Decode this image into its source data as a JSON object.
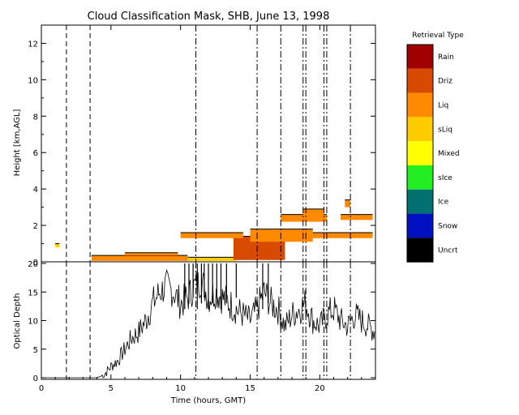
{
  "chart_data": [
    {
      "type": "heatmap",
      "title": "Cloud Classification Mask, SHB, June 13, 1998",
      "xlim": [
        0,
        24
      ],
      "ylim": [
        0,
        13
      ],
      "ylabel": "Height [km,AGL]",
      "y_ticks": [
        "0",
        "2",
        "4",
        "6",
        "8",
        "10",
        "12"
      ],
      "legend_title": "Retrieval Type",
      "legend": [
        {
          "label": "Rain",
          "color": "#a00000"
        },
        {
          "label": "Driz",
          "color": "#d84a00"
        },
        {
          "label": "Liq",
          "color": "#ff8a00"
        },
        {
          "label": "sLiq",
          "color": "#ffcc00"
        },
        {
          "label": "Mixed",
          "color": "#ffff00"
        },
        {
          "label": "sIce",
          "color": "#22ee22"
        },
        {
          "label": "Ice",
          "color": "#007070"
        },
        {
          "label": "Snow",
          "color": "#0010c0"
        },
        {
          "label": "Uncrt",
          "color": "#000000"
        }
      ],
      "dashed_lines_x": [
        1.8,
        3.5
      ],
      "dashdot_lines_x": [
        11.1,
        15.5,
        17.2,
        18.8,
        19.0,
        20.3,
        20.5,
        22.2
      ],
      "cloud_layers": [
        {
          "x0": 3.6,
          "x1": 10.5,
          "y0": 0.05,
          "y1": 0.35,
          "class": "Liq"
        },
        {
          "x0": 6.0,
          "x1": 9.8,
          "y0": 0.35,
          "y1": 0.5,
          "class": "Liq"
        },
        {
          "x0": 10.5,
          "x1": 14.0,
          "y0": 0.05,
          "y1": 0.25,
          "class": "sLiq"
        },
        {
          "x0": 13.8,
          "x1": 17.5,
          "y0": 0.1,
          "y1": 1.4,
          "class": "Driz"
        },
        {
          "x0": 15.0,
          "x1": 19.5,
          "y0": 1.1,
          "y1": 1.8,
          "class": "Liq"
        },
        {
          "x0": 10.0,
          "x1": 14.5,
          "y0": 1.3,
          "y1": 1.6,
          "class": "Liq"
        },
        {
          "x0": 17.2,
          "x1": 20.5,
          "y0": 2.2,
          "y1": 2.6,
          "class": "Liq"
        },
        {
          "x0": 18.8,
          "x1": 20.3,
          "y0": 2.4,
          "y1": 2.9,
          "class": "Liq"
        },
        {
          "x0": 19.5,
          "x1": 23.8,
          "y0": 1.3,
          "y1": 1.6,
          "class": "Liq"
        },
        {
          "x0": 21.5,
          "x1": 23.8,
          "y0": 2.3,
          "y1": 2.6,
          "class": "Liq"
        },
        {
          "x0": 21.8,
          "x1": 22.2,
          "y0": 3.0,
          "y1": 3.4,
          "class": "Liq"
        },
        {
          "x0": 1.0,
          "x1": 1.3,
          "y0": 0.8,
          "y1": 1.0,
          "class": "sLiq"
        }
      ]
    },
    {
      "type": "line",
      "xlabel": "Time (hours, GMT)",
      "ylabel": "Optical Depth",
      "xlim": [
        0,
        24
      ],
      "ylim": [
        0,
        20
      ],
      "x_ticks": [
        "0",
        "5",
        "10",
        "15",
        "20"
      ],
      "y_ticks": [
        "0",
        "5",
        "10",
        "15",
        "20"
      ],
      "dashed_lines_x": [
        1.8,
        3.5
      ],
      "dashdot_lines_x": [
        11.1,
        15.5,
        17.2,
        18.8,
        19.0,
        20.3,
        20.5,
        22.2
      ],
      "series": [
        {
          "x": [
            0,
            4.0,
            4.5,
            5.0,
            5.5,
            6.0,
            6.5,
            7.0,
            7.5,
            8.0,
            8.5,
            9.0,
            9.5,
            10.0,
            10.5,
            11.0,
            11.5,
            12.0,
            12.5,
            13.0,
            13.5,
            14.0,
            14.5,
            15.0,
            15.5,
            16.0,
            16.5,
            17.0,
            17.5,
            18.0,
            18.5,
            19.0,
            19.5,
            20.0,
            20.5,
            21.0,
            21.5,
            22.0,
            22.5,
            23.0,
            23.5,
            24.0
          ],
          "values": [
            0,
            0,
            0.5,
            2,
            3,
            5,
            7,
            8,
            10,
            13,
            15,
            16,
            15,
            13,
            14,
            16,
            17,
            14,
            15,
            14,
            13,
            12,
            11,
            10,
            12,
            15,
            13,
            12,
            9,
            11,
            12,
            13,
            10,
            9,
            11,
            12,
            10,
            9,
            11,
            10,
            9,
            8
          ]
        }
      ]
    }
  ]
}
